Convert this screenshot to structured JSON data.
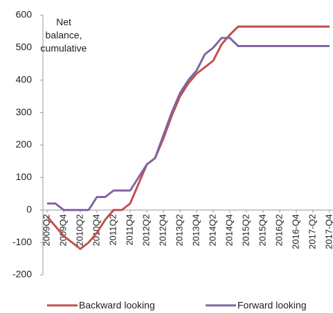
{
  "chart_data": {
    "type": "line",
    "annotation": [
      "Net",
      "balance,",
      "cumulative"
    ],
    "categories": [
      "2009Q2",
      null,
      "2009Q4",
      null,
      "2010Q2",
      null,
      "2010Q4",
      null,
      "2011Q2",
      null,
      "2011Q4",
      null,
      "2012Q2",
      null,
      "2012Q4",
      null,
      "2013Q2",
      null,
      "2013Q4",
      null,
      "2014Q2",
      null,
      "2014Q4",
      null,
      "2015Q2",
      null,
      "2015Q4",
      null,
      "2016Q2",
      null,
      "2016-Q4",
      null,
      "2017-Q2",
      null,
      "2017-Q4"
    ],
    "series": [
      {
        "name": "Backward looking",
        "color": "#c0504d",
        "values": [
          -20,
          -50,
          -80,
          -100,
          -120,
          -100,
          -70,
          -30,
          0,
          0,
          20,
          80,
          140,
          160,
          220,
          290,
          350,
          390,
          420,
          440,
          460,
          510,
          540,
          565,
          565,
          565,
          565,
          565,
          565,
          565,
          565,
          565,
          565,
          565,
          565
        ]
      },
      {
        "name": "Forward looking",
        "color": "#8064a2",
        "values": [
          20,
          20,
          0,
          0,
          0,
          0,
          40,
          40,
          60,
          60,
          60,
          100,
          140,
          160,
          230,
          300,
          360,
          400,
          430,
          480,
          500,
          530,
          530,
          505,
          505,
          505,
          505,
          505,
          505,
          505,
          505,
          505,
          505,
          505,
          505
        ]
      }
    ],
    "ylim": [
      -200,
      600
    ],
    "yticks": [
      -200,
      -100,
      0,
      100,
      200,
      300,
      400,
      500,
      600
    ],
    "grid": false,
    "legend": "bottom"
  }
}
